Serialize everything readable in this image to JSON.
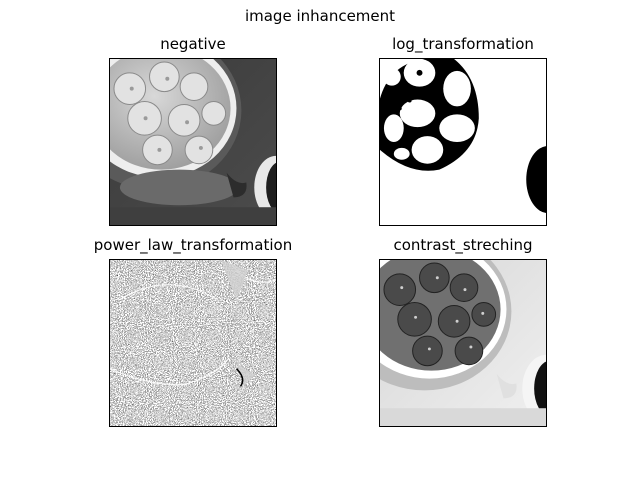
{
  "figure": {
    "title": "image inhancement"
  },
  "panels": [
    {
      "title": "negative",
      "image": "strawberry-bowl-negative"
    },
    {
      "title": "log_transformation",
      "image": "strawberry-bowl-log-threshold"
    },
    {
      "title": "power_law_transformation",
      "image": "strawberry-bowl-power-law-noise"
    },
    {
      "title": "contrast_streching",
      "image": "strawberry-bowl-contrast-stretched"
    }
  ]
}
